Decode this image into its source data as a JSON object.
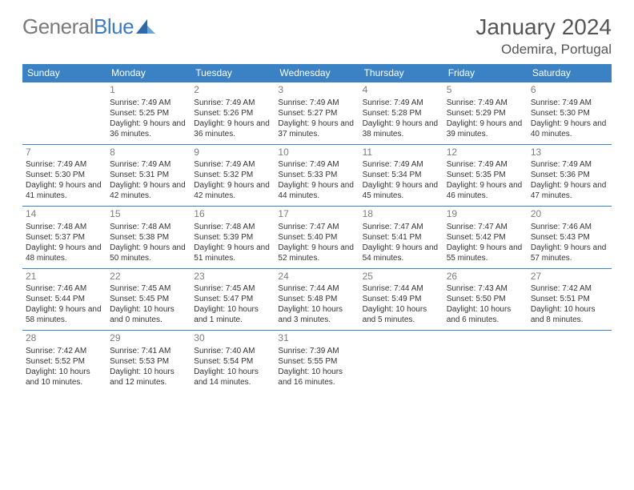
{
  "brand": {
    "part1": "General",
    "part2": "Blue"
  },
  "header": {
    "month": "January 2024",
    "location": "Odemira, Portugal"
  },
  "theme": {
    "accent": "#3b82c4",
    "logo_gray": "#7a7a7a",
    "logo_blue": "#3b7bbf",
    "text": "#333333",
    "daynum": "#7d7d7d",
    "bg": "#ffffff"
  },
  "dow": [
    "Sunday",
    "Monday",
    "Tuesday",
    "Wednesday",
    "Thursday",
    "Friday",
    "Saturday"
  ],
  "weeks": [
    [
      {
        "n": "",
        "lines": []
      },
      {
        "n": "1",
        "lines": [
          "Sunrise: 7:49 AM",
          "Sunset: 5:25 PM",
          "Daylight: 9 hours and 36 minutes."
        ]
      },
      {
        "n": "2",
        "lines": [
          "Sunrise: 7:49 AM",
          "Sunset: 5:26 PM",
          "Daylight: 9 hours and 36 minutes."
        ]
      },
      {
        "n": "3",
        "lines": [
          "Sunrise: 7:49 AM",
          "Sunset: 5:27 PM",
          "Daylight: 9 hours and 37 minutes."
        ]
      },
      {
        "n": "4",
        "lines": [
          "Sunrise: 7:49 AM",
          "Sunset: 5:28 PM",
          "Daylight: 9 hours and 38 minutes."
        ]
      },
      {
        "n": "5",
        "lines": [
          "Sunrise: 7:49 AM",
          "Sunset: 5:29 PM",
          "Daylight: 9 hours and 39 minutes."
        ]
      },
      {
        "n": "6",
        "lines": [
          "Sunrise: 7:49 AM",
          "Sunset: 5:30 PM",
          "Daylight: 9 hours and 40 minutes."
        ]
      }
    ],
    [
      {
        "n": "7",
        "lines": [
          "Sunrise: 7:49 AM",
          "Sunset: 5:30 PM",
          "Daylight: 9 hours and 41 minutes."
        ]
      },
      {
        "n": "8",
        "lines": [
          "Sunrise: 7:49 AM",
          "Sunset: 5:31 PM",
          "Daylight: 9 hours and 42 minutes."
        ]
      },
      {
        "n": "9",
        "lines": [
          "Sunrise: 7:49 AM",
          "Sunset: 5:32 PM",
          "Daylight: 9 hours and 42 minutes."
        ]
      },
      {
        "n": "10",
        "lines": [
          "Sunrise: 7:49 AM",
          "Sunset: 5:33 PM",
          "Daylight: 9 hours and 44 minutes."
        ]
      },
      {
        "n": "11",
        "lines": [
          "Sunrise: 7:49 AM",
          "Sunset: 5:34 PM",
          "Daylight: 9 hours and 45 minutes."
        ]
      },
      {
        "n": "12",
        "lines": [
          "Sunrise: 7:49 AM",
          "Sunset: 5:35 PM",
          "Daylight: 9 hours and 46 minutes."
        ]
      },
      {
        "n": "13",
        "lines": [
          "Sunrise: 7:49 AM",
          "Sunset: 5:36 PM",
          "Daylight: 9 hours and 47 minutes."
        ]
      }
    ],
    [
      {
        "n": "14",
        "lines": [
          "Sunrise: 7:48 AM",
          "Sunset: 5:37 PM",
          "Daylight: 9 hours and 48 minutes."
        ]
      },
      {
        "n": "15",
        "lines": [
          "Sunrise: 7:48 AM",
          "Sunset: 5:38 PM",
          "Daylight: 9 hours and 50 minutes."
        ]
      },
      {
        "n": "16",
        "lines": [
          "Sunrise: 7:48 AM",
          "Sunset: 5:39 PM",
          "Daylight: 9 hours and 51 minutes."
        ]
      },
      {
        "n": "17",
        "lines": [
          "Sunrise: 7:47 AM",
          "Sunset: 5:40 PM",
          "Daylight: 9 hours and 52 minutes."
        ]
      },
      {
        "n": "18",
        "lines": [
          "Sunrise: 7:47 AM",
          "Sunset: 5:41 PM",
          "Daylight: 9 hours and 54 minutes."
        ]
      },
      {
        "n": "19",
        "lines": [
          "Sunrise: 7:47 AM",
          "Sunset: 5:42 PM",
          "Daylight: 9 hours and 55 minutes."
        ]
      },
      {
        "n": "20",
        "lines": [
          "Sunrise: 7:46 AM",
          "Sunset: 5:43 PM",
          "Daylight: 9 hours and 57 minutes."
        ]
      }
    ],
    [
      {
        "n": "21",
        "lines": [
          "Sunrise: 7:46 AM",
          "Sunset: 5:44 PM",
          "Daylight: 9 hours and 58 minutes."
        ]
      },
      {
        "n": "22",
        "lines": [
          "Sunrise: 7:45 AM",
          "Sunset: 5:45 PM",
          "Daylight: 10 hours and 0 minutes."
        ]
      },
      {
        "n": "23",
        "lines": [
          "Sunrise: 7:45 AM",
          "Sunset: 5:47 PM",
          "Daylight: 10 hours and 1 minute."
        ]
      },
      {
        "n": "24",
        "lines": [
          "Sunrise: 7:44 AM",
          "Sunset: 5:48 PM",
          "Daylight: 10 hours and 3 minutes."
        ]
      },
      {
        "n": "25",
        "lines": [
          "Sunrise: 7:44 AM",
          "Sunset: 5:49 PM",
          "Daylight: 10 hours and 5 minutes."
        ]
      },
      {
        "n": "26",
        "lines": [
          "Sunrise: 7:43 AM",
          "Sunset: 5:50 PM",
          "Daylight: 10 hours and 6 minutes."
        ]
      },
      {
        "n": "27",
        "lines": [
          "Sunrise: 7:42 AM",
          "Sunset: 5:51 PM",
          "Daylight: 10 hours and 8 minutes."
        ]
      }
    ],
    [
      {
        "n": "28",
        "lines": [
          "Sunrise: 7:42 AM",
          "Sunset: 5:52 PM",
          "Daylight: 10 hours and 10 minutes."
        ]
      },
      {
        "n": "29",
        "lines": [
          "Sunrise: 7:41 AM",
          "Sunset: 5:53 PM",
          "Daylight: 10 hours and 12 minutes."
        ]
      },
      {
        "n": "30",
        "lines": [
          "Sunrise: 7:40 AM",
          "Sunset: 5:54 PM",
          "Daylight: 10 hours and 14 minutes."
        ]
      },
      {
        "n": "31",
        "lines": [
          "Sunrise: 7:39 AM",
          "Sunset: 5:55 PM",
          "Daylight: 10 hours and 16 minutes."
        ]
      },
      {
        "n": "",
        "lines": []
      },
      {
        "n": "",
        "lines": []
      },
      {
        "n": "",
        "lines": []
      }
    ]
  ]
}
